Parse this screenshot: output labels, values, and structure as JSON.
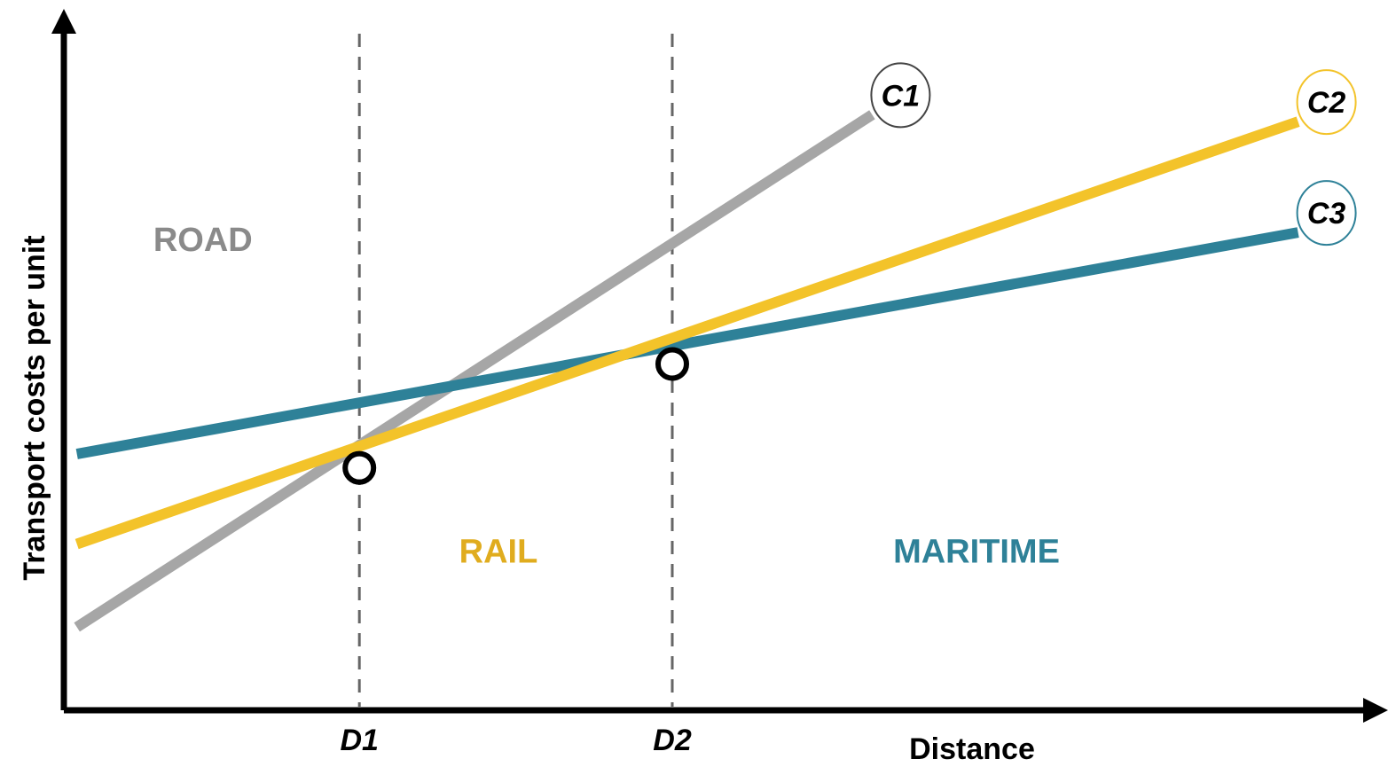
{
  "chart_data": {
    "type": "line",
    "title": "",
    "xlabel": "Distance",
    "ylabel": "Transport costs per unit",
    "x_ticks": [
      {
        "label": "D1",
        "x": 3.4
      },
      {
        "label": "D2",
        "x": 7.0
      }
    ],
    "xlim": [
      0,
      15
    ],
    "ylim": [
      0,
      10
    ],
    "grid": false,
    "series": [
      {
        "name": "C1",
        "color": "#a6a6a6",
        "points": [
          [
            0.15,
            1.2
          ],
          [
            9.3,
            8.6
          ]
        ]
      },
      {
        "name": "C2",
        "color": "#f3c32a",
        "points": [
          [
            0.15,
            2.4
          ],
          [
            14.2,
            8.5
          ]
        ]
      },
      {
        "name": "C3",
        "color": "#2e8198",
        "points": [
          [
            0.15,
            3.7
          ],
          [
            14.2,
            6.9
          ]
        ]
      }
    ],
    "intersections": [
      {
        "x": 3.4,
        "y": 3.5
      },
      {
        "x": 7.0,
        "y": 5.0
      }
    ],
    "regions": [
      {
        "label": "ROAD",
        "color": "#8a8a8a",
        "x": 1.6,
        "y": 6.8
      },
      {
        "label": "RAIL",
        "color": "#e0ac1e",
        "x": 5.0,
        "y": 2.3
      },
      {
        "label": "MARITIME",
        "color": "#2e8198",
        "x": 10.5,
        "y": 2.3
      }
    ]
  }
}
